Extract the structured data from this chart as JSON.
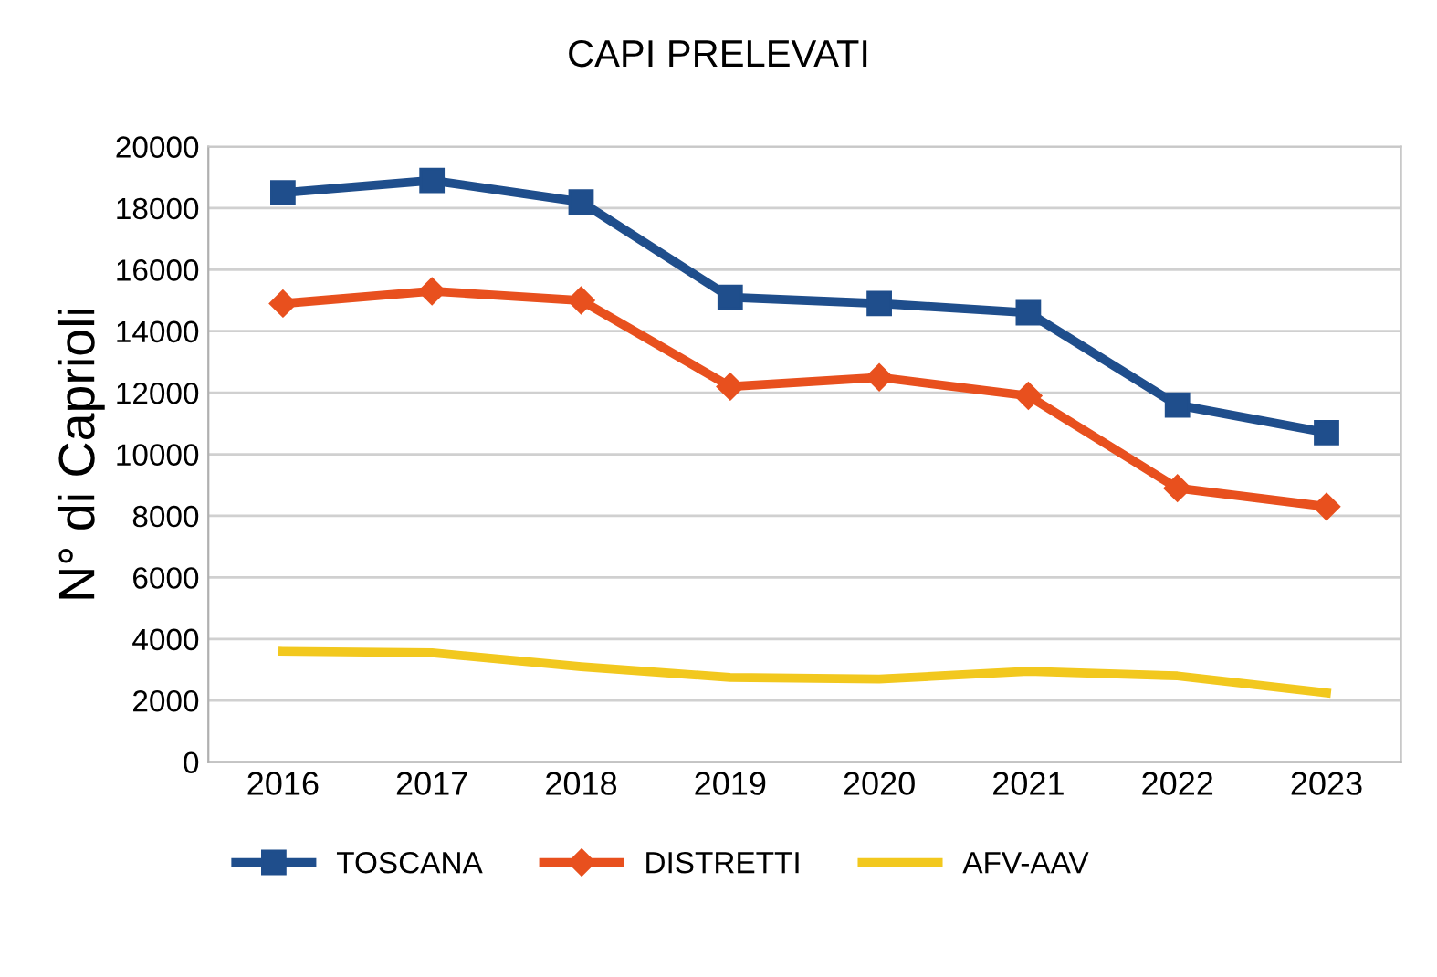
{
  "chart_data": {
    "type": "line",
    "title": "CAPI PRELEVATI",
    "ylabel": "N° di Caprioli",
    "categories": [
      "2016",
      "2017",
      "2018",
      "2019",
      "2020",
      "2021",
      "2022",
      "2023"
    ],
    "series": [
      {
        "name": "TOSCANA",
        "color": "#1f4e8c",
        "marker": "square",
        "values": [
          18500,
          18900,
          18200,
          15100,
          14900,
          14600,
          11600,
          10700
        ]
      },
      {
        "name": "DISTRETTI",
        "color": "#e8501e",
        "marker": "diamond",
        "values": [
          14900,
          15300,
          15000,
          12200,
          12500,
          11900,
          8900,
          8300
        ]
      },
      {
        "name": "AFV-AAV",
        "color": "#f2c81e",
        "marker": "none",
        "values": [
          3600,
          3550,
          3100,
          2750,
          2700,
          2950,
          2800,
          2250
        ]
      }
    ],
    "ylim": [
      0,
      20000
    ],
    "yticks": [
      0,
      2000,
      4000,
      6000,
      8000,
      10000,
      12000,
      14000,
      16000,
      18000,
      20000
    ],
    "grid": "y",
    "legend": "bottom left",
    "line_style": "solid"
  }
}
